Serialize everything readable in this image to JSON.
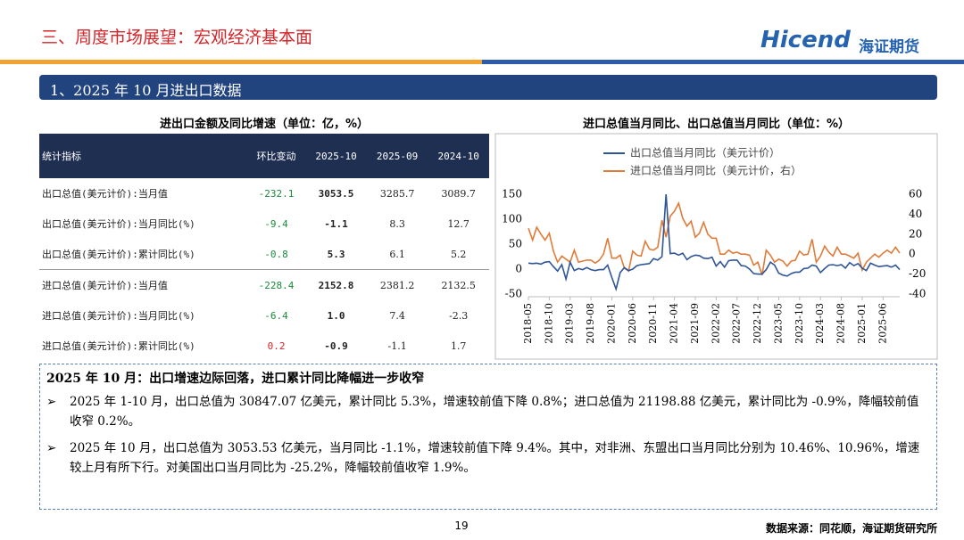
{
  "header": {
    "title": "三、周度市场展望：宏观经济基本面",
    "logo_en": "Hicend",
    "logo_cn": "海证期货"
  },
  "section": "1、2025 年 10 月进出口数据",
  "table": {
    "title": "进出口金额及同比增速（单位：亿，%）",
    "columns": [
      "统计指标",
      "环比变动",
      "2025-10",
      "2025-09",
      "2024-10"
    ],
    "rows": [
      [
        "出口总值(美元计价):当月值",
        "-232.1",
        "3053.5",
        "3285.7",
        "3089.7"
      ],
      [
        "出口总值(美元计价):当月同比(%)",
        "-9.4",
        "-1.1",
        "8.3",
        "12.7"
      ],
      [
        "出口总值(美元计价):累计同比(%)",
        "-0.8",
        "5.3",
        "6.1",
        "5.2"
      ],
      [
        "进口总值(美元计价):当月值",
        "-228.4",
        "2152.8",
        "2381.2",
        "2132.5"
      ],
      [
        "进口总值(美元计价):当月同比(%)",
        "-6.4",
        "1.0",
        "7.4",
        "-2.3"
      ],
      [
        "进口总值(美元计价):累计同比(%)",
        "0.2",
        "-0.9",
        "-1.1",
        "1.7"
      ]
    ]
  },
  "chart_data": {
    "type": "line",
    "title": "进口总值当月同比、出口总值当月同比（单位：%）",
    "categories": [
      "2018-05",
      null,
      null,
      null,
      null,
      "2018-10",
      null,
      null,
      null,
      null,
      "2019-03",
      null,
      null,
      null,
      null,
      "2019-08",
      null,
      null,
      null,
      null,
      "2020-01",
      null,
      null,
      null,
      null,
      "2020-06",
      null,
      null,
      null,
      null,
      "2020-11",
      null,
      null,
      null,
      null,
      "2021-04",
      null,
      null,
      null,
      null,
      "2021-09",
      null,
      null,
      null,
      null,
      "2022-02",
      null,
      null,
      null,
      null,
      "2022-07",
      null,
      null,
      null,
      null,
      "2022-12",
      null,
      null,
      null,
      null,
      "2023-05",
      null,
      null,
      null,
      null,
      "2023-10",
      null,
      null,
      null,
      null,
      "2024-03",
      null,
      null,
      null,
      null,
      "2024-08",
      null,
      null,
      null,
      null,
      "2025-01",
      null,
      null,
      null,
      null,
      "2025-06",
      null,
      null,
      null,
      null
    ],
    "series": [
      {
        "name": "出口总值当月同比（美元计价）",
        "color": "#2f5597",
        "values": [
          12,
          11,
          12,
          10,
          14,
          15,
          5,
          -4,
          9,
          -20,
          14,
          -3,
          1,
          -1,
          3,
          -1,
          -3,
          -1,
          -1,
          8,
          -17,
          -40,
          -7,
          3,
          -3,
          0,
          7,
          9,
          10,
          11,
          21,
          18,
          25,
          150,
          31,
          32,
          28,
          32,
          19,
          25,
          28,
          27,
          22,
          21,
          24,
          6,
          15,
          4,
          17,
          18,
          18,
          7,
          6,
          0,
          -9,
          -10,
          -10,
          -1,
          14,
          8,
          -8,
          -12,
          -14,
          -9,
          -6,
          -6,
          1,
          2,
          8,
          6,
          -7,
          1,
          8,
          9,
          7,
          9,
          2,
          13,
          7,
          11,
          2,
          -3,
          12,
          8,
          5,
          6,
          7,
          4,
          8,
          -1
        ]
      },
      {
        "name": "进口总值当月同比（美元计价，右）",
        "color": "#e07b39",
        "axis": "y2",
        "values": [
          26,
          14,
          27,
          20,
          14,
          21,
          3,
          -8,
          -2,
          -5,
          -8,
          4,
          -8,
          -7,
          -6,
          -6,
          -9,
          -6,
          0,
          16,
          -4,
          -4,
          -1,
          -14,
          -17,
          3,
          -1,
          -2,
          13,
          5,
          4,
          7,
          34,
          17,
          38,
          43,
          51,
          36,
          28,
          33,
          17,
          21,
          32,
          20,
          16,
          16,
          0,
          0,
          4,
          1,
          2,
          0,
          0,
          -1,
          -11,
          -8,
          -21,
          4,
          -1,
          -8,
          -5,
          -7,
          -12,
          -7,
          -6,
          3,
          -1,
          0,
          15,
          -8,
          -2,
          8,
          2,
          -2,
          7,
          0,
          0,
          -2,
          -4,
          1,
          -16,
          -8,
          -4,
          0,
          -3,
          1,
          4,
          1,
          7,
          1
        ]
      }
    ],
    "ylim": [
      -50,
      150
    ],
    "yticks": [
      -50,
      0,
      50,
      100,
      150
    ],
    "y2lim": [
      -40,
      60
    ],
    "y2ticks": [
      -40,
      -20,
      0,
      20,
      40,
      60
    ]
  },
  "summary": {
    "title": "2025 年 10 月：出口增速边际回落，进口累计同比降幅进一步收窄",
    "bullets": [
      "2025 年 1-10 月，出口总值为 30847.07 亿美元，累计同比 5.3%，增速较前值下降 0.8%；进口总值为 21198.88 亿美元，累计同比为 -0.9%，降幅较前值收窄 0.2%。",
      "2025 年 10 月，出口总值为 3053.53 亿美元，当月同比 -1.1%，增速较前值下降 9.4%。其中，对非洲、东盟出口当月同比分别为 10.46%、10.96%，增速较上月有所下行。对美国出口当月同比为 -25.2%，降幅较前值收窄 1.9%。"
    ]
  },
  "footer": {
    "page": "19",
    "source": "数据来源：同花顺，海证期货研究所"
  }
}
